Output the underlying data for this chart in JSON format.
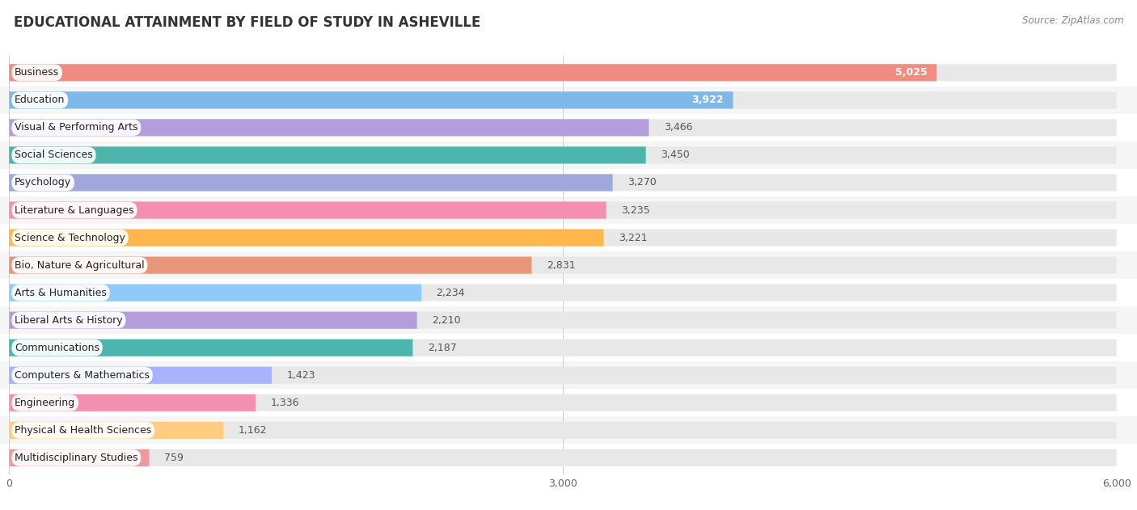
{
  "title": "EDUCATIONAL ATTAINMENT BY FIELD OF STUDY IN ASHEVILLE",
  "source": "Source: ZipAtlas.com",
  "categories": [
    "Business",
    "Education",
    "Visual & Performing Arts",
    "Social Sciences",
    "Psychology",
    "Literature & Languages",
    "Science & Technology",
    "Bio, Nature & Agricultural",
    "Arts & Humanities",
    "Liberal Arts & History",
    "Communications",
    "Computers & Mathematics",
    "Engineering",
    "Physical & Health Sciences",
    "Multidisciplinary Studies"
  ],
  "values": [
    5025,
    3922,
    3466,
    3450,
    3270,
    3235,
    3221,
    2831,
    2234,
    2210,
    2187,
    1423,
    1336,
    1162,
    759
  ],
  "bar_colors": [
    "#f28b82",
    "#7eb8e8",
    "#b39ddb",
    "#4db6ac",
    "#9fa8da",
    "#f48fb1",
    "#ffb74d",
    "#e8967a",
    "#90caf9",
    "#b39ddb",
    "#4db6ac",
    "#a5b4fc",
    "#f48fb1",
    "#ffcc80",
    "#ef9a9a"
  ],
  "row_bg_colors": [
    "#ffffff",
    "#f5f5f5"
  ],
  "track_color": "#e8e8e8",
  "xlim": [
    0,
    6000
  ],
  "xticks": [
    0,
    3000,
    6000
  ],
  "background_color": "#ffffff",
  "title_fontsize": 12,
  "label_fontsize": 9,
  "value_fontsize": 9,
  "inside_label_threshold": 3900
}
